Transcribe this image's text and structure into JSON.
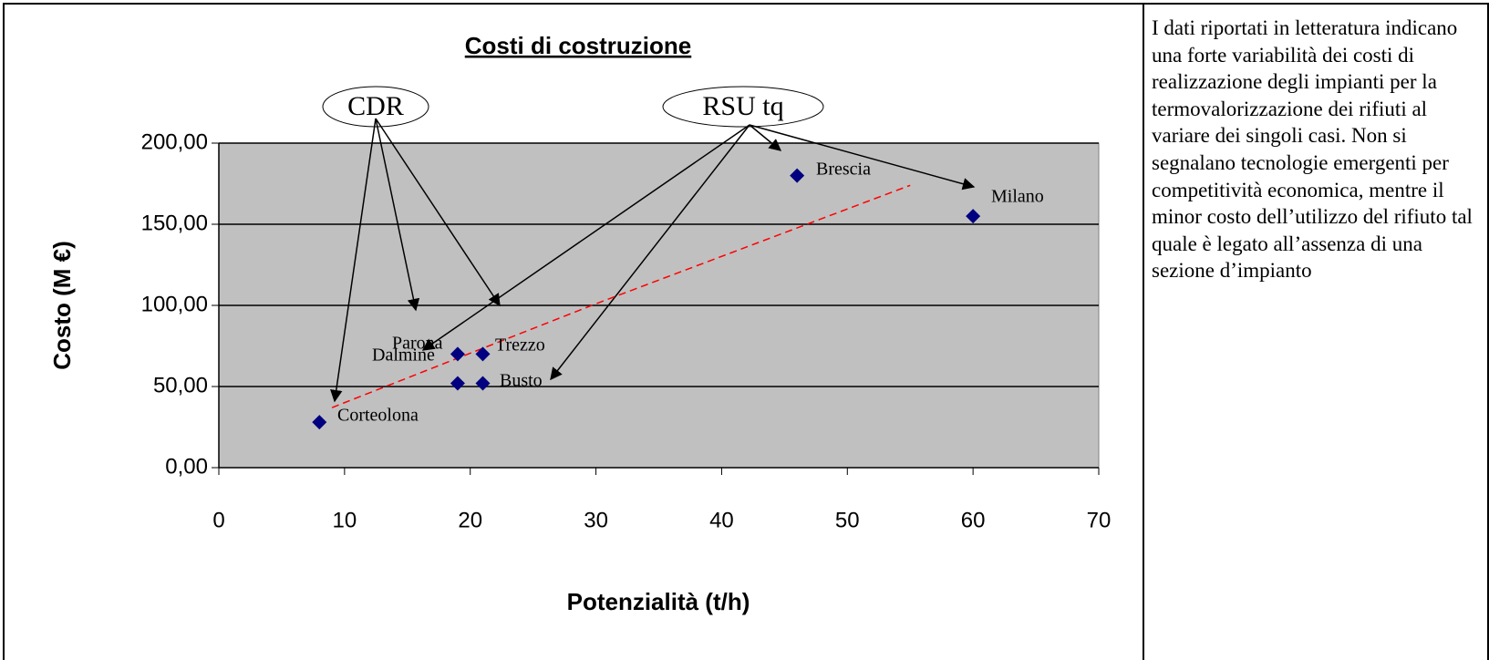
{
  "chart_data": {
    "type": "scatter",
    "title": "Costi di costruzione",
    "x_label": "Potenzialità (t/h)",
    "y_label": "Costo (M €)",
    "series": [
      {
        "color": "#000080",
        "x": [
          8,
          19,
          21,
          19,
          21,
          46,
          60
        ],
        "values": [
          28,
          70,
          70,
          52,
          52,
          180,
          155
        ]
      }
    ],
    "trendline": {
      "color": "#ff0000",
      "x": [
        9,
        30,
        55
      ],
      "values": [
        37,
        101,
        174
      ]
    },
    "annotations": [
      "CDR",
      "RSU tq",
      "Brescia",
      "Milano",
      "Parona",
      "Trezzo",
      "Dalmine",
      "Busto",
      "Corteolona"
    ],
    "xlim": [
      0,
      70
    ],
    "xticks": [
      0,
      10,
      20,
      30,
      40,
      50,
      60,
      70
    ],
    "ylim": [
      0,
      200
    ],
    "yticks": [
      {
        "value": 0,
        "label": "0,00"
      },
      {
        "value": 50,
        "label": "50,00"
      },
      {
        "value": 100,
        "label": "100,00"
      },
      {
        "value": 150,
        "label": "150,00"
      },
      {
        "value": 200,
        "label": "200,00"
      }
    ],
    "grid": true
  },
  "note": "I dati riportati in letteratura indicano una forte variabilità dei costi di realizzazione degli impianti per la termovalorizzazione dei rifiuti al variare dei singoli casi. Non si segnalano tecnologie emergenti per competitività economica, mentre il minor costo dell’utilizzo del rifiuto tal quale è legato all’assenza di una sezione d’impianto"
}
